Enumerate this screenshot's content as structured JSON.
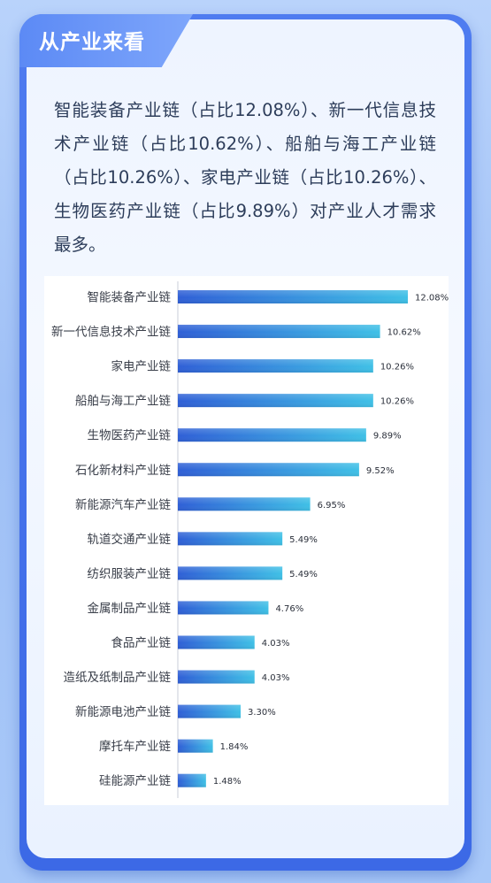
{
  "header": {
    "title": "从产业来看"
  },
  "summary": {
    "text": "智能装备产业链（占比12.08%）、新一代信息技术产业链（占比10.62%）、船舶与海工产业链（占比10.26%）、家电产业链（占比10.26%）、生物医药产业链（占比9.89%）对产业人才需求最多。"
  },
  "colors": {
    "bar_start": "#2f5fd6",
    "bar_end": "#3fc0e6",
    "axis": "#c9ced8"
  },
  "chart_data": {
    "type": "bar",
    "orientation": "horizontal",
    "title": "",
    "xlabel": "",
    "ylabel": "",
    "categories": [
      "智能装备产业链",
      "新一代信息技术产业链",
      "家电产业链",
      "船舶与海工产业链",
      "生物医药产业链",
      "石化新材料产业链",
      "新能源汽车产业链",
      "轨道交通产业链",
      "纺织服装产业链",
      "金属制品产业链",
      "食品产业链",
      "造纸及纸制品产业链",
      "新能源电池产业链",
      "摩托车产业链",
      "硅能源产业链"
    ],
    "values": [
      12.08,
      10.62,
      10.26,
      10.26,
      9.89,
      9.52,
      6.95,
      5.49,
      5.49,
      4.76,
      4.03,
      4.03,
      3.3,
      1.84,
      1.48
    ],
    "value_labels": [
      "12.08%",
      "10.62%",
      "10.26%",
      "10.26%",
      "9.89%",
      "9.52%",
      "6.95%",
      "5.49%",
      "5.49%",
      "4.76%",
      "4.03%",
      "4.03%",
      "3.30%",
      "1.84%",
      "1.48%"
    ],
    "xlim": [
      0,
      12.08
    ],
    "grid": false,
    "legend": "none"
  }
}
